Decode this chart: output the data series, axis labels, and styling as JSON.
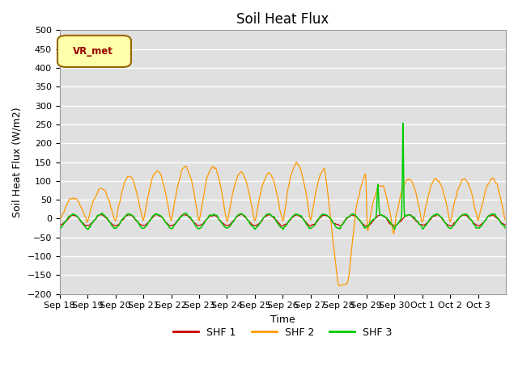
{
  "title": "Soil Heat Flux",
  "ylabel": "Soil Heat Flux (W/m2)",
  "xlabel": "Time",
  "ylim": [
    -200,
    500
  ],
  "yticks": [
    -200,
    -150,
    -100,
    -50,
    0,
    50,
    100,
    150,
    200,
    250,
    300,
    350,
    400,
    450,
    500
  ],
  "xtick_labels": [
    "Sep 18",
    "Sep 19",
    "Sep 20",
    "Sep 21",
    "Sep 22",
    "Sep 23",
    "Sep 24",
    "Sep 25",
    "Sep 26",
    "Sep 27",
    "Sep 28",
    "Sep 29",
    "Sep 30",
    "Oct 1",
    "Oct 2",
    "Oct 3"
  ],
  "legend_label": "VR_met",
  "series_labels": [
    "SHF 1",
    "SHF 2",
    "SHF 3"
  ],
  "colors": [
    "#cc0000",
    "#ff9900",
    "#00cc00"
  ],
  "background_color": "#e0e0e0",
  "title_fontsize": 12,
  "axis_fontsize": 9,
  "tick_fontsize": 8
}
